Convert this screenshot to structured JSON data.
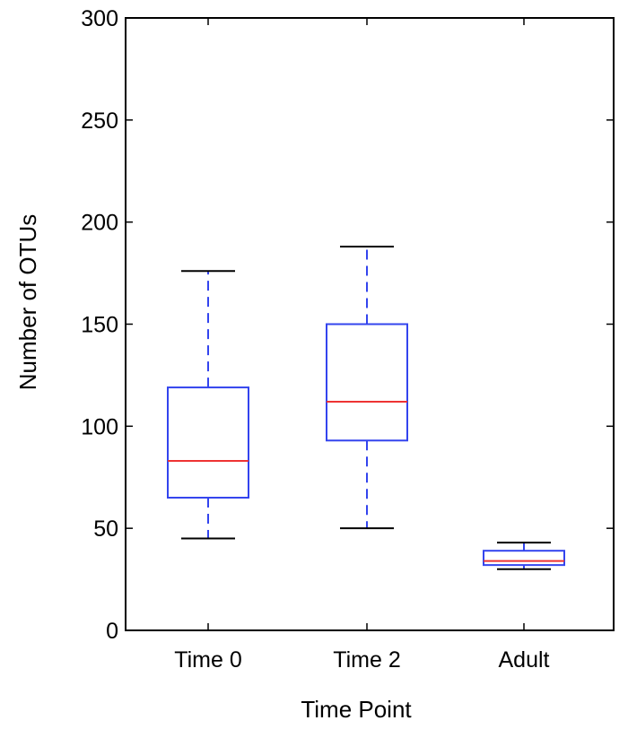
{
  "chart_data": {
    "type": "box",
    "title": "",
    "xlabel": "Time Point",
    "ylabel": "Number of OTUs",
    "ylim": [
      0,
      300
    ],
    "yticks": [
      0,
      50,
      100,
      150,
      200,
      250,
      300
    ],
    "categories": [
      "Time 0",
      "Time 2",
      "Adult"
    ],
    "boxes": [
      {
        "name": "Time 0",
        "whisker_low": 45,
        "q1": 65,
        "median": 83,
        "q3": 119,
        "whisker_high": 176
      },
      {
        "name": "Time 2",
        "whisker_low": 50,
        "q1": 93,
        "median": 112,
        "q3": 150,
        "whisker_high": 188
      },
      {
        "name": "Adult",
        "whisker_low": 30,
        "q1": 32,
        "median": 34,
        "q3": 39,
        "whisker_high": 43
      }
    ],
    "colors": {
      "box": "#3344ee",
      "whisker": "#3344ee",
      "median": "#ee3333",
      "cap": "#000000",
      "axes": "#000000"
    }
  }
}
